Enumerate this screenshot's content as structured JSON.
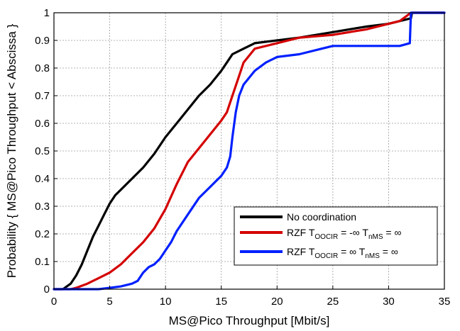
{
  "chart_data": {
    "type": "line",
    "title": "",
    "xlabel": "MS@Pico Throughput [Mbit/s]",
    "ylabel": "Probability { MS@Pico Throughput < Abscissa }",
    "xlim": [
      0,
      35
    ],
    "ylim": [
      0,
      1
    ],
    "xticks": [
      "0",
      "5",
      "10",
      "15",
      "20",
      "25",
      "30",
      "35"
    ],
    "yticks": [
      "0",
      "0.1",
      "0.2",
      "0.3",
      "0.4",
      "0.5",
      "0.6",
      "0.7",
      "0.8",
      "0.9",
      "1"
    ],
    "grid": true,
    "legend_position": "bottom-right",
    "series": [
      {
        "name": "No coordination",
        "legend": {
          "main": "No coordination"
        },
        "color": "#000000",
        "x": [
          0,
          0.8,
          1.5,
          2,
          2.5,
          3,
          3.5,
          4,
          4.5,
          5,
          5.5,
          6,
          7,
          8,
          9,
          10,
          11,
          12,
          13,
          14,
          15,
          15.5,
          16,
          17,
          18,
          20,
          22,
          25,
          28,
          30,
          31,
          32,
          32.1,
          35
        ],
        "y": [
          0,
          0,
          0.02,
          0.05,
          0.09,
          0.14,
          0.19,
          0.23,
          0.27,
          0.31,
          0.34,
          0.36,
          0.4,
          0.44,
          0.49,
          0.55,
          0.6,
          0.65,
          0.7,
          0.74,
          0.79,
          0.82,
          0.85,
          0.87,
          0.89,
          0.9,
          0.91,
          0.93,
          0.95,
          0.96,
          0.97,
          0.98,
          1.0,
          1.0
        ]
      },
      {
        "name": "RZF T OOCIR = -∞ T nMS = ∞",
        "legend": {
          "prefix": "RZF T",
          "sub1": "OOCIR",
          "mid": " = -∞ T",
          "sub2": "nMS",
          "suffix": " = ∞"
        },
        "color": "#d40000",
        "x": [
          0,
          1.5,
          2,
          3,
          4,
          5,
          6,
          7,
          8,
          9,
          10,
          11,
          12,
          13,
          14,
          15,
          15.5,
          16,
          16.5,
          17,
          18,
          20,
          22,
          25,
          28,
          30,
          31,
          32,
          35
        ],
        "y": [
          0,
          0,
          0.005,
          0.02,
          0.04,
          0.06,
          0.09,
          0.13,
          0.17,
          0.22,
          0.29,
          0.38,
          0.46,
          0.51,
          0.56,
          0.61,
          0.64,
          0.7,
          0.76,
          0.82,
          0.87,
          0.89,
          0.91,
          0.92,
          0.94,
          0.96,
          0.97,
          1.0,
          1.0
        ]
      },
      {
        "name": "RZF T OOCIR = ∞ T nMS = ∞",
        "legend": {
          "prefix": "RZF T",
          "sub1": "OOCIR",
          "mid": " = ∞ T",
          "sub2": "nMS",
          "suffix": " = ∞"
        },
        "color": "#0020ff",
        "x": [
          0,
          4,
          5,
          6,
          7,
          7.5,
          8,
          8.5,
          9,
          9.5,
          10,
          10.5,
          11,
          12,
          13,
          14,
          15,
          15.5,
          15.8,
          16,
          16.3,
          16.6,
          17,
          18,
          19,
          20,
          22,
          24,
          25,
          28,
          30,
          31,
          31.9,
          32,
          35
        ],
        "y": [
          0,
          0,
          0.005,
          0.01,
          0.02,
          0.03,
          0.06,
          0.08,
          0.09,
          0.11,
          0.14,
          0.17,
          0.21,
          0.27,
          0.33,
          0.37,
          0.41,
          0.44,
          0.48,
          0.55,
          0.64,
          0.7,
          0.74,
          0.79,
          0.82,
          0.84,
          0.85,
          0.87,
          0.88,
          0.88,
          0.88,
          0.88,
          0.89,
          1.0,
          1.0
        ]
      }
    ]
  }
}
